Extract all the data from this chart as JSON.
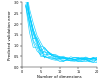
{
  "title": "",
  "xlabel": "Number of dimensions",
  "ylabel": "Predicted validation error",
  "xlim": [
    0,
    20
  ],
  "ylim": [
    0,
    3.0
  ],
  "yticks": [
    0,
    0.5,
    1.0,
    1.5,
    2.0,
    2.5,
    3.0
  ],
  "xticks": [
    0,
    5,
    10,
    15,
    20
  ],
  "line_color": "#00ccff",
  "n_lines": 10,
  "n_dims": 20,
  "background_color": "#ffffff",
  "figsize": [
    1.0,
    0.81
  ],
  "dpi": 100
}
